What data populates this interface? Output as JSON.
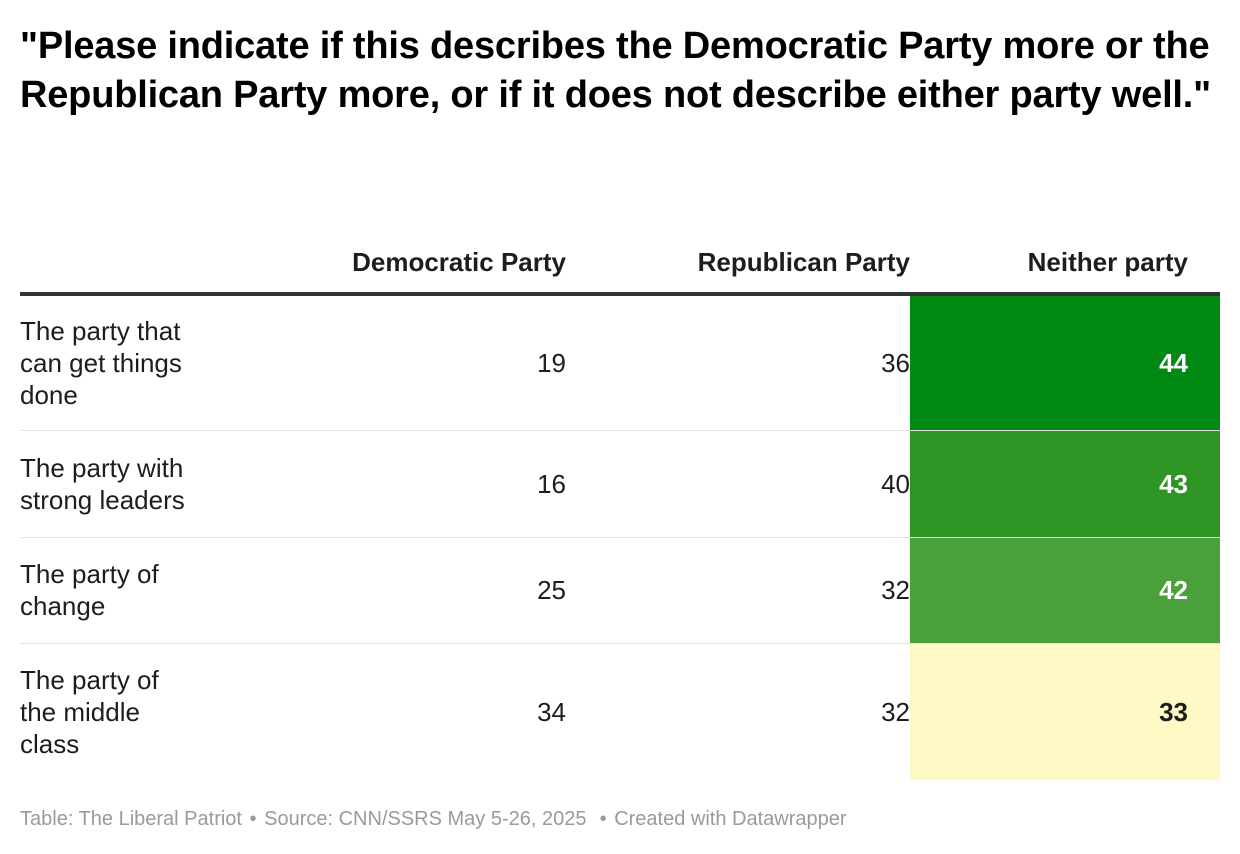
{
  "title": "\"Please indicate if this describes the Democratic Party more or the Republican Party more, or if it does not describe either party well.\"",
  "chart_data": {
    "type": "table",
    "title": "\"Please indicate if this describes the Democratic Party more or the Republican Party more, or if it does not describe either party well.\"",
    "columns": [
      "Democratic Party",
      "Republican Party",
      "Neither party"
    ],
    "rows": [
      {
        "label": "The party that can get things done",
        "democratic": 19,
        "republican": 36,
        "neither": 44,
        "neither_bg": "#008a14",
        "neither_text": "#ffffff"
      },
      {
        "label": "The party with strong leaders",
        "democratic": 16,
        "republican": 40,
        "neither": 43,
        "neither_bg": "#2e9424",
        "neither_text": "#ffffff"
      },
      {
        "label": "The party of change",
        "democratic": 25,
        "republican": 32,
        "neither": 42,
        "neither_bg": "#4aa03a",
        "neither_text": "#ffffff"
      },
      {
        "label": "The party of the middle class",
        "democratic": 34,
        "republican": 32,
        "neither": 33,
        "neither_bg": "#fff9c6",
        "neither_text": "#1d1d1d"
      }
    ],
    "heatmap_column": "Neither party"
  },
  "footer": {
    "table_credit": "Table: The Liberal Patriot",
    "separator": "•",
    "source": "Source: CNN/SSRS May 5-26, 2025",
    "created_with": "Created with Datawrapper"
  }
}
